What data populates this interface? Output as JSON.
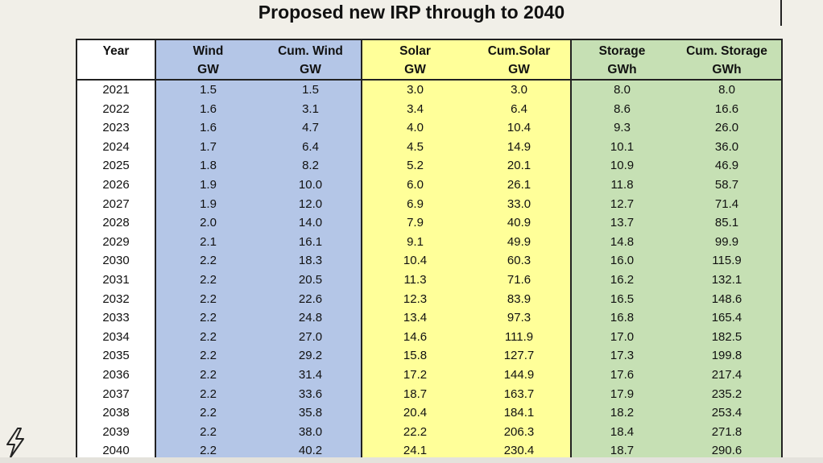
{
  "title": "Proposed new IRP through to 2040",
  "chart_data": {
    "type": "table",
    "title": "Proposed new IRP through to 2040",
    "columns": [
      {
        "name": "Year",
        "unit": ""
      },
      {
        "name": "Wind",
        "unit": "GW"
      },
      {
        "name": "Cum. Wind",
        "unit": "GW"
      },
      {
        "name": "Solar",
        "unit": "GW"
      },
      {
        "name": "Cum.Solar",
        "unit": "GW"
      },
      {
        "name": "Storage",
        "unit": "GWh"
      },
      {
        "name": "Cum. Storage",
        "unit": "GWh"
      }
    ],
    "group_colors": {
      "year": "#ffffff",
      "wind": "#b4c6e7",
      "solar": "#ffff99",
      "storage": "#c6e0b4"
    },
    "rows": [
      [
        "2021",
        "1.5",
        "1.5",
        "3.0",
        "3.0",
        "8.0",
        "8.0"
      ],
      [
        "2022",
        "1.6",
        "3.1",
        "3.4",
        "6.4",
        "8.6",
        "16.6"
      ],
      [
        "2023",
        "1.6",
        "4.7",
        "4.0",
        "10.4",
        "9.3",
        "26.0"
      ],
      [
        "2024",
        "1.7",
        "6.4",
        "4.5",
        "14.9",
        "10.1",
        "36.0"
      ],
      [
        "2025",
        "1.8",
        "8.2",
        "5.2",
        "20.1",
        "10.9",
        "46.9"
      ],
      [
        "2026",
        "1.9",
        "10.0",
        "6.0",
        "26.1",
        "11.8",
        "58.7"
      ],
      [
        "2027",
        "1.9",
        "12.0",
        "6.9",
        "33.0",
        "12.7",
        "71.4"
      ],
      [
        "2028",
        "2.0",
        "14.0",
        "7.9",
        "40.9",
        "13.7",
        "85.1"
      ],
      [
        "2029",
        "2.1",
        "16.1",
        "9.1",
        "49.9",
        "14.8",
        "99.9"
      ],
      [
        "2030",
        "2.2",
        "18.3",
        "10.4",
        "60.3",
        "16.0",
        "115.9"
      ],
      [
        "2031",
        "2.2",
        "20.5",
        "11.3",
        "71.6",
        "16.2",
        "132.1"
      ],
      [
        "2032",
        "2.2",
        "22.6",
        "12.3",
        "83.9",
        "16.5",
        "148.6"
      ],
      [
        "2033",
        "2.2",
        "24.8",
        "13.4",
        "97.3",
        "16.8",
        "165.4"
      ],
      [
        "2034",
        "2.2",
        "27.0",
        "14.6",
        "111.9",
        "17.0",
        "182.5"
      ],
      [
        "2035",
        "2.2",
        "29.2",
        "15.8",
        "127.7",
        "17.3",
        "199.8"
      ],
      [
        "2036",
        "2.2",
        "31.4",
        "17.2",
        "144.9",
        "17.6",
        "217.4"
      ],
      [
        "2037",
        "2.2",
        "33.6",
        "18.7",
        "163.7",
        "17.9",
        "235.2"
      ],
      [
        "2038",
        "2.2",
        "35.8",
        "20.4",
        "184.1",
        "18.2",
        "253.4"
      ],
      [
        "2039",
        "2.2",
        "38.0",
        "22.2",
        "206.3",
        "18.4",
        "271.8"
      ],
      [
        "2040",
        "2.2",
        "40.2",
        "24.1",
        "230.4",
        "18.7",
        "290.6"
      ]
    ]
  },
  "icons": {
    "corner": "lightning-bolt-icon"
  }
}
